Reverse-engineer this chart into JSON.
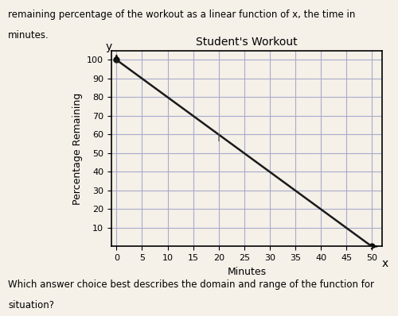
{
  "title": "Student's Workout",
  "xlabel": "Minutes",
  "ylabel": "Percentage Remaining",
  "line_x": [
    0,
    50
  ],
  "line_y": [
    100,
    0
  ],
  "xlim": [
    -1,
    52
  ],
  "ylim": [
    0,
    105
  ],
  "xticks": [
    0,
    5,
    10,
    15,
    20,
    25,
    30,
    35,
    40,
    45,
    50
  ],
  "yticks": [
    10,
    20,
    30,
    40,
    50,
    60,
    70,
    80,
    90,
    100
  ],
  "line_color": "#1a1a1a",
  "grid_color": "#aaaacc",
  "bg_color": "#f5f0e8",
  "text_top": "remaining percentage of the workout as a linear function of x, the time in",
  "text_top2": "minutes.",
  "text_bottom": "Which answer choice best describes the domain and range of the function for",
  "text_bottom2": "situation?",
  "cursor_x": 20,
  "cursor_y": 58,
  "fig_bg": "#f5f0e8"
}
